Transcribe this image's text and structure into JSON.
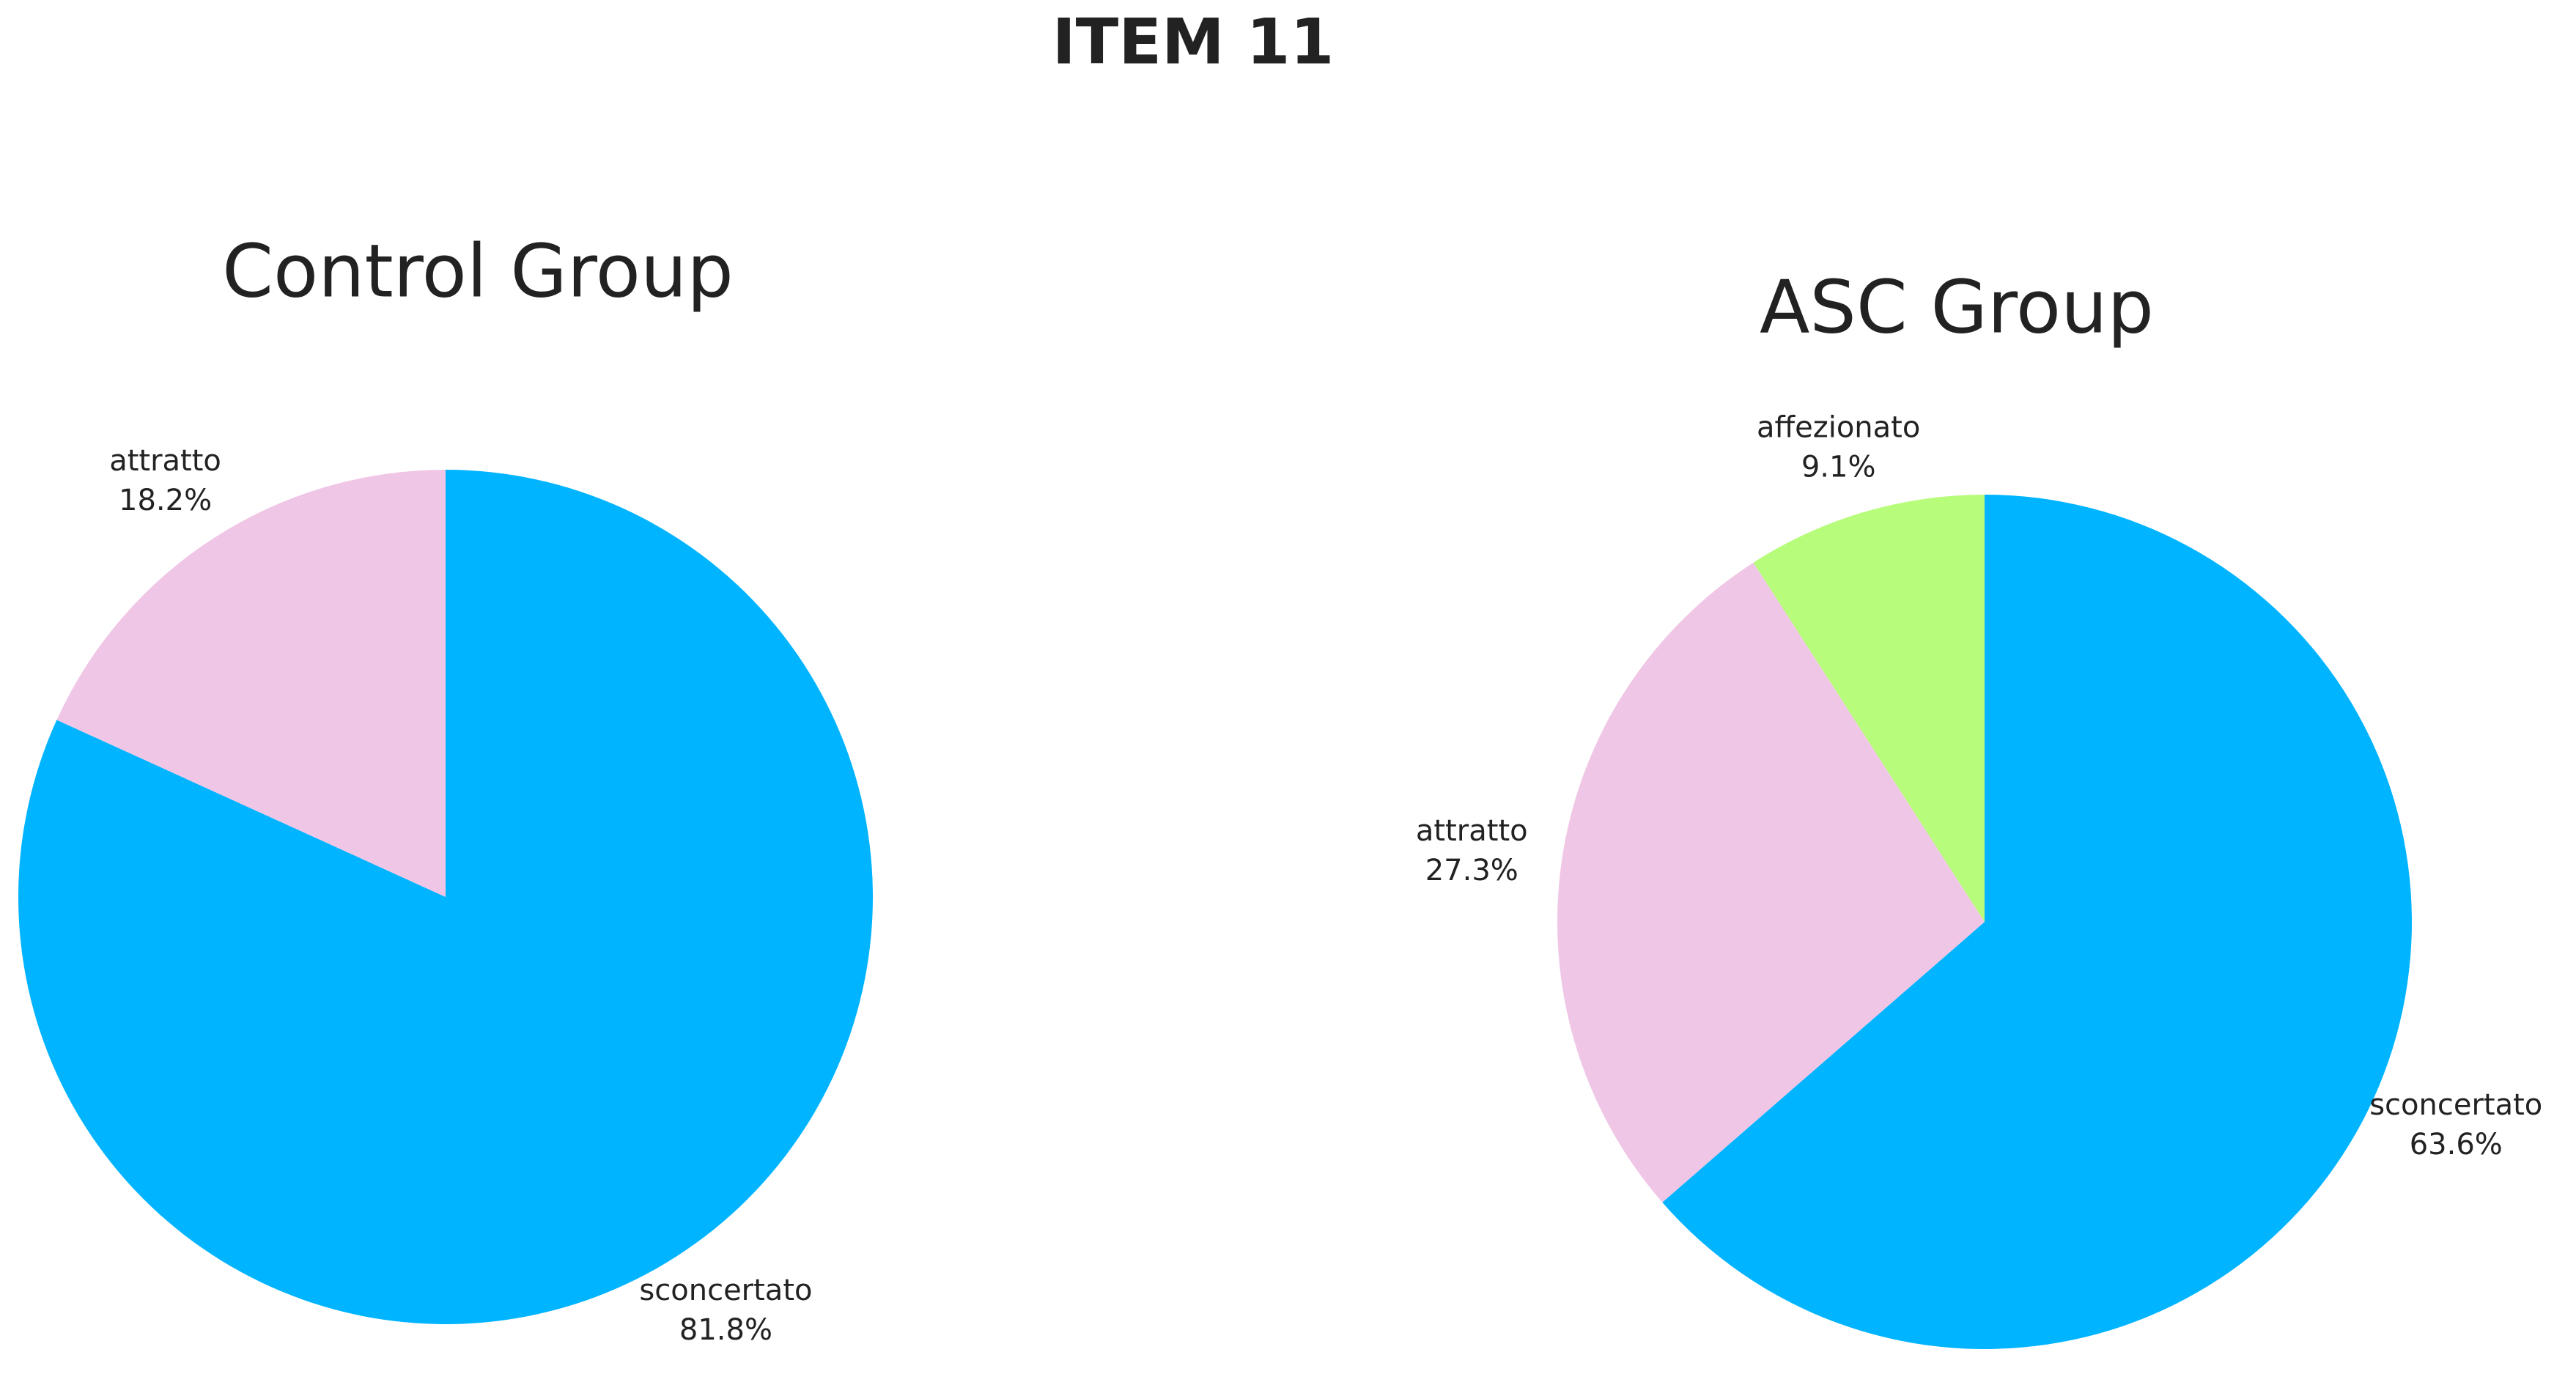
{
  "title": "ITEM 11",
  "chart_data": [
    {
      "type": "pie",
      "title": "Control Group",
      "categories": [
        "sconcertato",
        "attratto"
      ],
      "values": [
        81.8,
        18.2
      ],
      "value_labels": [
        "81.8%",
        "18.2%"
      ],
      "colors": [
        "#00b4ff",
        "#f0c6e6"
      ]
    },
    {
      "type": "pie",
      "title": "ASC Group",
      "categories": [
        "sconcertato",
        "attratto",
        "affezionato"
      ],
      "values": [
        63.6,
        27.3,
        9.1
      ],
      "value_labels": [
        "63.6%",
        "27.3%",
        "9.1%"
      ],
      "colors": [
        "#00b4ff",
        "#f0c6e6",
        "#b8fc7c"
      ]
    }
  ]
}
